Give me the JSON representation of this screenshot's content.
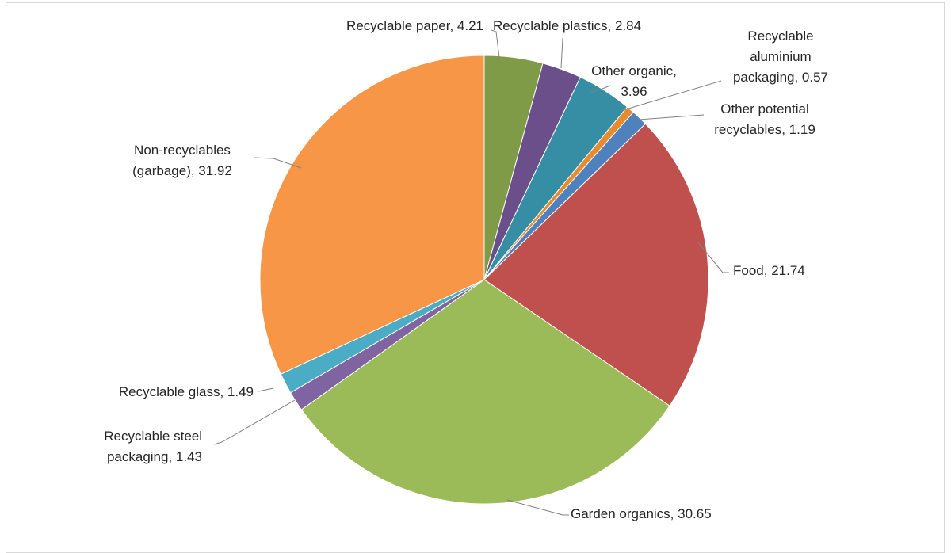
{
  "chart_data": {
    "type": "pie",
    "title": "",
    "start_angle_deg": 0,
    "direction": "clockwise",
    "slices": [
      {
        "name": "Recyclable paper",
        "value": 4.21,
        "color": "#7F9B47",
        "label_lines": [
          "Recyclable paper, 4.21"
        ]
      },
      {
        "name": "Recyclable plastics",
        "value": 2.84,
        "color": "#6B4F8A",
        "label_lines": [
          "Recyclable plastics, 2.84"
        ]
      },
      {
        "name": "Other organic",
        "value": 3.96,
        "color": "#368EA4",
        "label_lines": [
          "Other organic,",
          "3.96"
        ]
      },
      {
        "name": "Recyclable aluminium packaging",
        "value": 0.57,
        "color": "#E88A2E",
        "label_lines": [
          "Recyclable",
          "aluminium",
          "packaging, 0.57"
        ]
      },
      {
        "name": "Other potential recyclables",
        "value": 1.19,
        "color": "#4F81BD",
        "label_lines": [
          "Other potential",
          "recyclables, 1.19"
        ]
      },
      {
        "name": "Food",
        "value": 21.74,
        "color": "#C0504D",
        "label_lines": [
          "Food, 21.74"
        ]
      },
      {
        "name": "Garden organics",
        "value": 30.65,
        "color": "#9BBB59",
        "label_lines": [
          "Garden organics, 30.65"
        ]
      },
      {
        "name": "Recyclable steel packaging",
        "value": 1.43,
        "color": "#8064A2",
        "label_lines": [
          "Recyclable steel",
          "packaging, 1.43"
        ]
      },
      {
        "name": "Recyclable glass",
        "value": 1.49,
        "color": "#4BACC6",
        "label_lines": [
          "Recyclable glass, 1.49"
        ]
      },
      {
        "name": "Non-recyclables (garbage)",
        "value": 31.92,
        "color": "#F79646",
        "label_lines": [
          "Non-recyclables",
          "(garbage), 31.92"
        ]
      }
    ]
  }
}
